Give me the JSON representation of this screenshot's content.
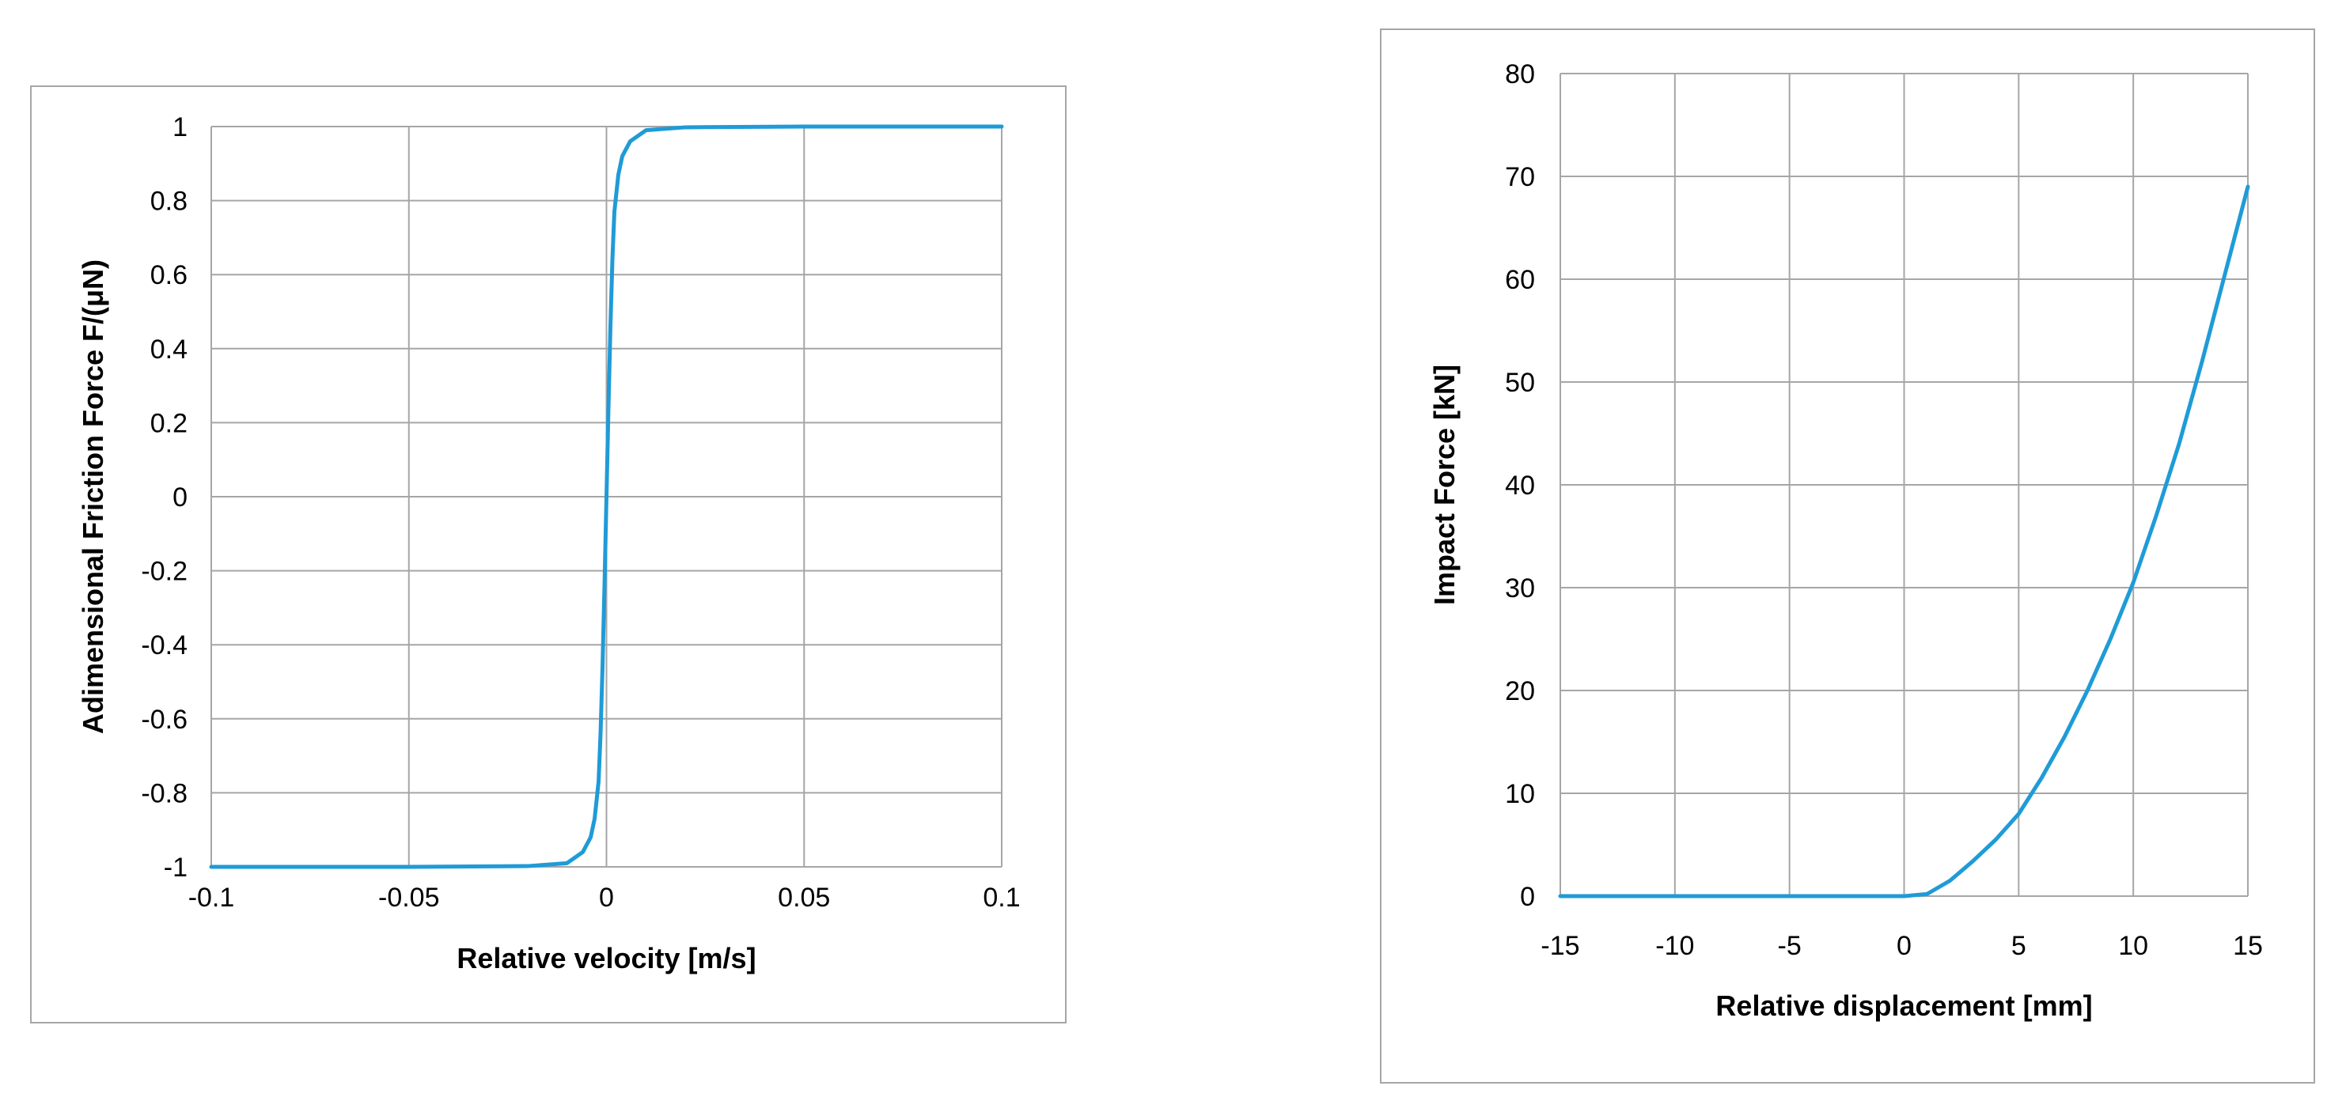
{
  "chart_data": [
    {
      "type": "line",
      "title": "",
      "xlabel": "Relative velocity [m/s]",
      "ylabel": "Adimensional Friction Force F/(μN)",
      "xlim": [
        -0.1,
        0.1
      ],
      "ylim": [
        -1,
        1
      ],
      "grid": true,
      "legend": "none",
      "line_color": "#1f9bd7",
      "x_ticks": [
        "-0.1",
        "-0.05",
        "0",
        "0.05",
        "0.1"
      ],
      "x_tick_values": [
        -0.1,
        -0.05,
        0,
        0.05,
        0.1
      ],
      "y_ticks": [
        "-1",
        "-0.8",
        "-0.6",
        "-0.4",
        "-0.2",
        "0",
        "0.2",
        "0.4",
        "0.6",
        "0.8",
        "1"
      ],
      "y_tick_values": [
        -1,
        -0.8,
        -0.6,
        -0.4,
        -0.2,
        0,
        0.2,
        0.4,
        0.6,
        0.8,
        1
      ],
      "series": [
        {
          "x": [
            -0.1,
            -0.05,
            -0.02,
            -0.01,
            -0.006,
            -0.004,
            -0.003,
            -0.002,
            -0.0015,
            -0.001,
            -0.0005,
            0,
            0.0005,
            0.001,
            0.0015,
            0.002,
            0.003,
            0.004,
            0.006,
            0.01,
            0.02,
            0.05,
            0.1
          ],
          "y": [
            -1,
            -1,
            -0.998,
            -0.99,
            -0.96,
            -0.92,
            -0.87,
            -0.77,
            -0.64,
            -0.46,
            -0.24,
            0,
            0.24,
            0.46,
            0.64,
            0.77,
            0.87,
            0.92,
            0.96,
            0.99,
            0.998,
            1,
            1
          ]
        }
      ]
    },
    {
      "type": "line",
      "title": "",
      "xlabel": "Relative displacement [mm]",
      "ylabel": "Impact Force [kN]",
      "xlim": [
        -15,
        15
      ],
      "ylim": [
        0,
        80
      ],
      "grid": true,
      "legend": "none",
      "line_color": "#1f9bd7",
      "x_ticks": [
        "-15",
        "-10",
        "-5",
        "0",
        "5",
        "10",
        "15"
      ],
      "x_tick_values": [
        -15,
        -10,
        -5,
        0,
        5,
        10,
        15
      ],
      "y_ticks": [
        "0",
        "10",
        "20",
        "30",
        "40",
        "50",
        "60",
        "70",
        "80"
      ],
      "y_tick_values": [
        0,
        10,
        20,
        30,
        40,
        50,
        60,
        70,
        80
      ],
      "series": [
        {
          "x": [
            -15,
            -10,
            -5,
            0,
            1,
            2,
            3,
            4,
            5,
            6,
            7,
            8,
            9,
            10,
            11,
            12,
            13,
            14,
            15
          ],
          "y": [
            0,
            0,
            0,
            0,
            0.2,
            1.5,
            3.4,
            5.5,
            8,
            11.5,
            15.5,
            20,
            25,
            30.5,
            37,
            44,
            52,
            60.5,
            69
          ]
        }
      ]
    }
  ]
}
